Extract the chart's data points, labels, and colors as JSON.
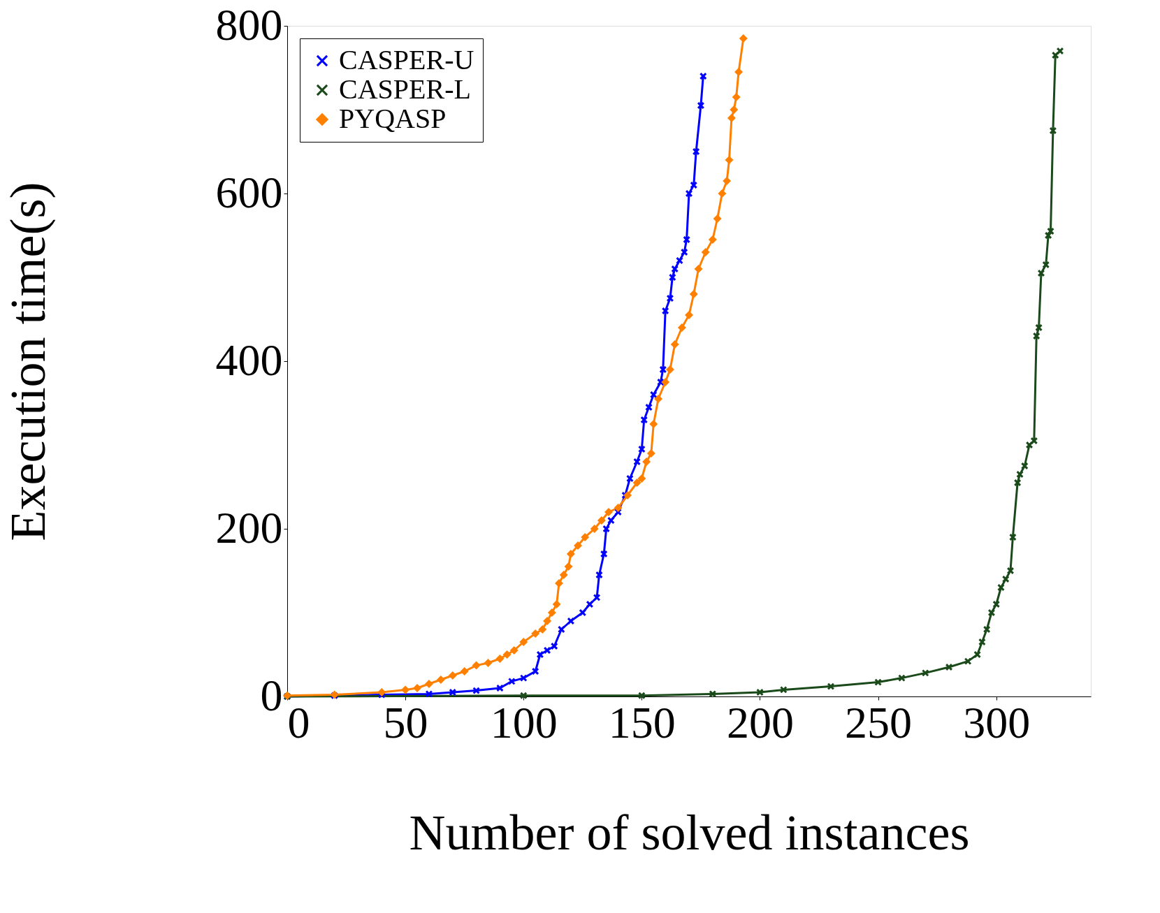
{
  "chart_data": {
    "type": "line",
    "xlabel": "Number of solved instances",
    "ylabel": "Execution time(s)",
    "xlim": [
      0,
      340
    ],
    "ylim": [
      0,
      800
    ],
    "xticks": [
      0,
      50,
      100,
      150,
      200,
      250,
      300
    ],
    "yticks": [
      0,
      200,
      400,
      600,
      800
    ],
    "grid": false,
    "legend": "top left",
    "line_style": "solid",
    "series": [
      {
        "name": "CASPER-U",
        "color": "#0000ff",
        "marker": "cross",
        "x": [
          0,
          20,
          40,
          60,
          70,
          80,
          90,
          95,
          100,
          105,
          107,
          110,
          113,
          116,
          120,
          125,
          128,
          131,
          132,
          134,
          135,
          137,
          140,
          143,
          145,
          148,
          150,
          151,
          153,
          155,
          158,
          159,
          160,
          162,
          163,
          164,
          166,
          168,
          169,
          170,
          172,
          173,
          175,
          176
        ],
        "values": [
          0,
          1,
          2,
          3,
          5,
          7,
          10,
          18,
          22,
          30,
          50,
          55,
          60,
          80,
          90,
          100,
          110,
          118,
          145,
          170,
          200,
          210,
          220,
          240,
          260,
          280,
          295,
          330,
          345,
          360,
          375,
          390,
          460,
          475,
          500,
          510,
          520,
          530,
          545,
          600,
          610,
          650,
          705,
          740
        ]
      },
      {
        "name": "CASPER-L",
        "color": "#1a4a1a",
        "marker": "cross",
        "x": [
          0,
          100,
          150,
          180,
          200,
          210,
          230,
          250,
          260,
          270,
          280,
          288,
          292,
          294,
          296,
          298,
          300,
          302,
          304,
          306,
          307,
          309,
          310,
          312,
          314,
          316,
          317,
          318,
          319,
          321,
          322,
          323,
          324,
          325,
          327
        ],
        "values": [
          0,
          1,
          1,
          3,
          5,
          8,
          12,
          17,
          22,
          28,
          35,
          42,
          50,
          65,
          80,
          100,
          110,
          130,
          140,
          150,
          190,
          255,
          265,
          275,
          300,
          305,
          430,
          440,
          505,
          515,
          550,
          555,
          675,
          765,
          770
        ]
      },
      {
        "name": "PYQASP",
        "color": "#ff8000",
        "marker": "diamond",
        "x": [
          0,
          20,
          40,
          50,
          55,
          60,
          65,
          70,
          75,
          80,
          85,
          90,
          93,
          96,
          100,
          105,
          108,
          110,
          112,
          114,
          115,
          117,
          119,
          120,
          123,
          126,
          130,
          133,
          136,
          140,
          144,
          148,
          150,
          152,
          154,
          155,
          157,
          160,
          162,
          164,
          167,
          170,
          172,
          174,
          177,
          180,
          182,
          184,
          186,
          187,
          188,
          189,
          190,
          191,
          193
        ],
        "values": [
          1,
          2,
          5,
          8,
          10,
          15,
          20,
          25,
          30,
          37,
          40,
          45,
          50,
          55,
          65,
          75,
          80,
          90,
          100,
          110,
          135,
          145,
          155,
          170,
          180,
          190,
          200,
          210,
          220,
          225,
          240,
          255,
          260,
          280,
          290,
          325,
          355,
          375,
          390,
          420,
          440,
          455,
          480,
          510,
          530,
          545,
          570,
          600,
          615,
          640,
          690,
          700,
          715,
          745,
          785
        ]
      }
    ]
  }
}
